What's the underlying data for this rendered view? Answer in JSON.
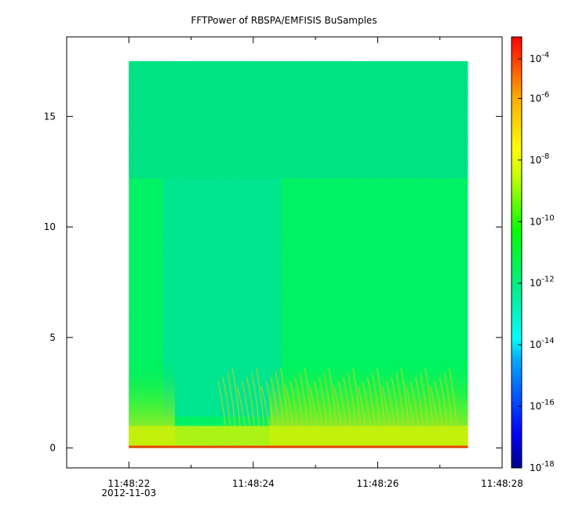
{
  "chart_data": {
    "type": "heatmap",
    "title": "FFTPower of RBSPA/EMFISIS  BuSamples",
    "xlabel": "",
    "ylabel": "",
    "x_axis": {
      "type": "time",
      "range": [
        "11:48:21.0",
        "11:48:28.0"
      ],
      "tick_labels": [
        "11:48:22",
        "11:48:24",
        "11:48:26",
        "11:48:28"
      ],
      "tick_values_s": [
        22,
        24,
        26,
        28
      ],
      "minor_tick_values_s": [
        21,
        23,
        25,
        27
      ],
      "date_label": "2012-11-03"
    },
    "y_axis": {
      "range": [
        -0.9,
        18.6
      ],
      "tick_values": [
        0,
        5,
        10,
        15
      ],
      "tick_labels": [
        "0",
        "5",
        "10",
        "15"
      ]
    },
    "data_extent": {
      "time_start_s": 22.0,
      "time_end_s": 27.45,
      "freq_min": 0,
      "freq_max": 17.5,
      "upper_band_start": 12.2
    },
    "gap": {
      "time_start_s": 22.55,
      "time_end_s": 24.45,
      "description": "reduced power region"
    },
    "colorbar": {
      "scale": "log",
      "range": [
        1e-18,
        0.0001
      ],
      "colormap": "rainbow",
      "tick_bases": [
        "10",
        "10",
        "10",
        "10",
        "10",
        "10",
        "10",
        "10"
      ],
      "tick_exponents": [
        "-4",
        "-6",
        "-8",
        "-10",
        "-12",
        "-14",
        "-16",
        "-18"
      ],
      "tick_values_log": [
        -4,
        -6,
        -8,
        -10,
        -12,
        -14,
        -16,
        -18
      ]
    },
    "colors": {
      "background": "#00ff66",
      "upper_band": "#00ee88",
      "gap": "#00ee99",
      "low_band": "#ddff00",
      "bottom_edge": "#ff4400"
    }
  }
}
